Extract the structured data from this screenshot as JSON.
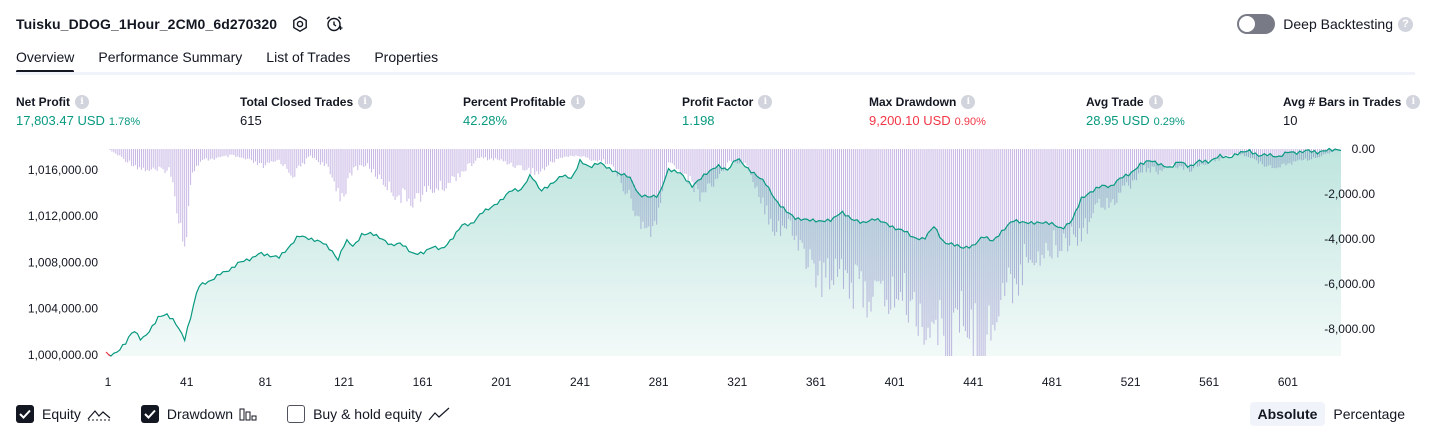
{
  "header": {
    "strategy_name": "Tuisku_DDOG_1Hour_2CM0_6d270320",
    "deep_backtesting_label": "Deep Backtesting"
  },
  "tabs": [
    {
      "label": "Overview",
      "active": true
    },
    {
      "label": "Performance Summary",
      "active": false
    },
    {
      "label": "List of Trades",
      "active": false
    },
    {
      "label": "Properties",
      "active": false
    }
  ],
  "metrics": [
    {
      "label": "Net Profit",
      "value": "17,803.47 USD",
      "sub": "1.78%",
      "tone": "pos"
    },
    {
      "label": "Total Closed Trades",
      "value": "615",
      "sub": "",
      "tone": "neu"
    },
    {
      "label": "Percent Profitable",
      "value": "42.28%",
      "sub": "",
      "tone": "pos"
    },
    {
      "label": "Profit Factor",
      "value": "1.198",
      "sub": "",
      "tone": "pos"
    },
    {
      "label": "Max Drawdown",
      "value": "9,200.10 USD",
      "sub": "0.90%",
      "tone": "neg"
    },
    {
      "label": "Avg Trade",
      "value": "28.95 USD",
      "sub": "0.29%",
      "tone": "pos"
    },
    {
      "label": "Avg # Bars in Trades",
      "value": "10",
      "sub": "",
      "tone": "neu"
    }
  ],
  "chart_data": {
    "type": "area",
    "x_range": [
      1,
      628
    ],
    "x_ticks": [
      "1",
      "41",
      "81",
      "121",
      "161",
      "201",
      "241",
      "281",
      "321",
      "361",
      "401",
      "441",
      "481",
      "521",
      "561",
      "601"
    ],
    "x_tick_values": [
      1,
      41,
      81,
      121,
      161,
      201,
      241,
      281,
      321,
      361,
      401,
      441,
      481,
      521,
      561,
      601
    ],
    "left_axis": {
      "ticks": [
        "1,000,000.00",
        "1,004,000.00",
        "1,008,000.00",
        "1,012,000.00",
        "1,016,000.00"
      ],
      "tick_values": [
        1000000,
        1004000,
        1008000,
        1012000,
        1016000
      ],
      "range": [
        999900,
        1017800
      ]
    },
    "right_axis": {
      "ticks": [
        "0.00",
        "-2,000.00",
        "-4,000.00",
        "-6,000.00",
        "-8,000.00"
      ],
      "tick_values": [
        0,
        -2000,
        -4000,
        -6000,
        -8000
      ],
      "range": [
        -9200,
        0
      ]
    },
    "series": [
      {
        "name": "Equity",
        "axis": "left",
        "color": "#089981",
        "points": [
          [
            1,
            1000000
          ],
          [
            5,
            1000200
          ],
          [
            10,
            1001100
          ],
          [
            14,
            1002200
          ],
          [
            18,
            1001300
          ],
          [
            22,
            1002000
          ],
          [
            27,
            1003300
          ],
          [
            31,
            1003400
          ],
          [
            35,
            1002800
          ],
          [
            40,
            1001300
          ],
          [
            43,
            1003200
          ],
          [
            47,
            1006000
          ],
          [
            53,
            1006400
          ],
          [
            58,
            1007100
          ],
          [
            63,
            1007400
          ],
          [
            68,
            1008100
          ],
          [
            74,
            1008300
          ],
          [
            78,
            1008800
          ],
          [
            83,
            1008500
          ],
          [
            88,
            1008400
          ],
          [
            93,
            1009200
          ],
          [
            98,
            1010300
          ],
          [
            104,
            1010000
          ],
          [
            110,
            1009800
          ],
          [
            114,
            1009200
          ],
          [
            118,
            1008300
          ],
          [
            122,
            1010000
          ],
          [
            126,
            1009400
          ],
          [
            130,
            1010400
          ],
          [
            135,
            1010500
          ],
          [
            140,
            1010000
          ],
          [
            145,
            1009400
          ],
          [
            150,
            1009600
          ],
          [
            156,
            1008700
          ],
          [
            161,
            1008800
          ],
          [
            166,
            1009400
          ],
          [
            171,
            1009200
          ],
          [
            176,
            1010100
          ],
          [
            181,
            1011300
          ],
          [
            186,
            1011300
          ],
          [
            191,
            1012300
          ],
          [
            196,
            1012700
          ],
          [
            201,
            1013300
          ],
          [
            206,
            1014200
          ],
          [
            211,
            1014200
          ],
          [
            216,
            1015600
          ],
          [
            221,
            1014200
          ],
          [
            227,
            1014900
          ],
          [
            232,
            1015600
          ],
          [
            237,
            1015300
          ],
          [
            241,
            1016800
          ],
          [
            246,
            1016200
          ],
          [
            251,
            1016600
          ],
          [
            256,
            1016000
          ],
          [
            261,
            1015600
          ],
          [
            266,
            1015400
          ],
          [
            271,
            1013800
          ],
          [
            276,
            1013700
          ],
          [
            281,
            1013800
          ],
          [
            286,
            1016100
          ],
          [
            292,
            1015800
          ],
          [
            298,
            1014600
          ],
          [
            304,
            1015500
          ],
          [
            311,
            1016300
          ],
          [
            316,
            1015900
          ],
          [
            321,
            1017000
          ],
          [
            326,
            1016100
          ],
          [
            331,
            1015500
          ],
          [
            335,
            1015000
          ],
          [
            341,
            1013300
          ],
          [
            346,
            1012500
          ],
          [
            351,
            1011800
          ],
          [
            357,
            1011700
          ],
          [
            363,
            1011500
          ],
          [
            369,
            1011600
          ],
          [
            374,
            1012300
          ],
          [
            379,
            1011700
          ],
          [
            385,
            1011400
          ],
          [
            391,
            1011800
          ],
          [
            396,
            1011500
          ],
          [
            401,
            1011000
          ],
          [
            406,
            1010800
          ],
          [
            411,
            1010100
          ],
          [
            416,
            1010000
          ],
          [
            421,
            1011100
          ],
          [
            426,
            1009600
          ],
          [
            431,
            1009500
          ],
          [
            436,
            1009200
          ],
          [
            441,
            1009400
          ],
          [
            446,
            1010300
          ],
          [
            451,
            1009900
          ],
          [
            456,
            1010800
          ],
          [
            461,
            1011700
          ],
          [
            466,
            1011500
          ],
          [
            471,
            1011400
          ],
          [
            476,
            1011400
          ],
          [
            481,
            1011300
          ],
          [
            486,
            1010800
          ],
          [
            491,
            1011500
          ],
          [
            496,
            1013500
          ],
          [
            501,
            1014100
          ],
          [
            506,
            1014700
          ],
          [
            511,
            1014600
          ],
          [
            516,
            1015400
          ],
          [
            521,
            1015700
          ],
          [
            526,
            1016500
          ],
          [
            531,
            1016800
          ],
          [
            536,
            1016400
          ],
          [
            541,
            1016100
          ],
          [
            546,
            1016700
          ],
          [
            551,
            1016200
          ],
          [
            556,
            1016800
          ],
          [
            561,
            1016700
          ],
          [
            566,
            1017300
          ],
          [
            571,
            1017100
          ],
          [
            576,
            1017500
          ],
          [
            581,
            1017700
          ],
          [
            586,
            1017200
          ],
          [
            591,
            1017300
          ],
          [
            596,
            1017000
          ],
          [
            601,
            1017500
          ],
          [
            606,
            1017400
          ],
          [
            611,
            1017700
          ],
          [
            616,
            1017500
          ],
          [
            621,
            1017800
          ],
          [
            628,
            1017800
          ]
        ]
      },
      {
        "name": "Drawdown",
        "axis": "right",
        "color": "#b39ddb",
        "points": [
          [
            1,
            0
          ],
          [
            10,
            -500
          ],
          [
            18,
            -900
          ],
          [
            26,
            -1000
          ],
          [
            32,
            -900
          ],
          [
            36,
            -2500
          ],
          [
            40,
            -4300
          ],
          [
            44,
            -1000
          ],
          [
            50,
            -500
          ],
          [
            58,
            -400
          ],
          [
            64,
            -300
          ],
          [
            72,
            -500
          ],
          [
            80,
            -800
          ],
          [
            88,
            -500
          ],
          [
            95,
            -1200
          ],
          [
            104,
            -300
          ],
          [
            112,
            -800
          ],
          [
            120,
            -2200
          ],
          [
            126,
            -900
          ],
          [
            132,
            -700
          ],
          [
            140,
            -1400
          ],
          [
            148,
            -2100
          ],
          [
            156,
            -2300
          ],
          [
            164,
            -1900
          ],
          [
            172,
            -1700
          ],
          [
            180,
            -1100
          ],
          [
            190,
            -400
          ],
          [
            200,
            -500
          ],
          [
            210,
            -800
          ],
          [
            220,
            -1100
          ],
          [
            230,
            -400
          ],
          [
            240,
            -300
          ],
          [
            248,
            -500
          ],
          [
            256,
            -600
          ],
          [
            264,
            -1800
          ],
          [
            272,
            -3600
          ],
          [
            280,
            -3600
          ],
          [
            286,
            -600
          ],
          [
            294,
            -1100
          ],
          [
            302,
            -2100
          ],
          [
            310,
            -1400
          ],
          [
            318,
            -500
          ],
          [
            326,
            -700
          ],
          [
            332,
            -2000
          ],
          [
            340,
            -3500
          ],
          [
            348,
            -3600
          ],
          [
            356,
            -4800
          ],
          [
            364,
            -6100
          ],
          [
            372,
            -5100
          ],
          [
            380,
            -6300
          ],
          [
            388,
            -6600
          ],
          [
            396,
            -6800
          ],
          [
            404,
            -6600
          ],
          [
            412,
            -7400
          ],
          [
            420,
            -8300
          ],
          [
            426,
            -8200
          ],
          [
            430,
            -9200
          ],
          [
            434,
            -7700
          ],
          [
            440,
            -8100
          ],
          [
            446,
            -9200
          ],
          [
            452,
            -7600
          ],
          [
            458,
            -6300
          ],
          [
            464,
            -5800
          ],
          [
            470,
            -4700
          ],
          [
            478,
            -4700
          ],
          [
            486,
            -4200
          ],
          [
            494,
            -3800
          ],
          [
            500,
            -3200
          ],
          [
            506,
            -2400
          ],
          [
            512,
            -2300
          ],
          [
            520,
            -1700
          ],
          [
            528,
            -900
          ],
          [
            536,
            -1000
          ],
          [
            544,
            -800
          ],
          [
            552,
            -900
          ],
          [
            560,
            -600
          ],
          [
            568,
            -400
          ],
          [
            576,
            -200
          ],
          [
            584,
            -500
          ],
          [
            592,
            -800
          ],
          [
            600,
            -700
          ],
          [
            608,
            -500
          ],
          [
            616,
            -400
          ],
          [
            622,
            -200
          ],
          [
            628,
            0
          ]
        ]
      }
    ],
    "legend_position": "bottom-left"
  },
  "legend": {
    "equity_label": "Equity",
    "drawdown_label": "Drawdown",
    "buyhold_label": "Buy & hold equity"
  },
  "mode": {
    "absolute_label": "Absolute",
    "percentage_label": "Percentage"
  }
}
